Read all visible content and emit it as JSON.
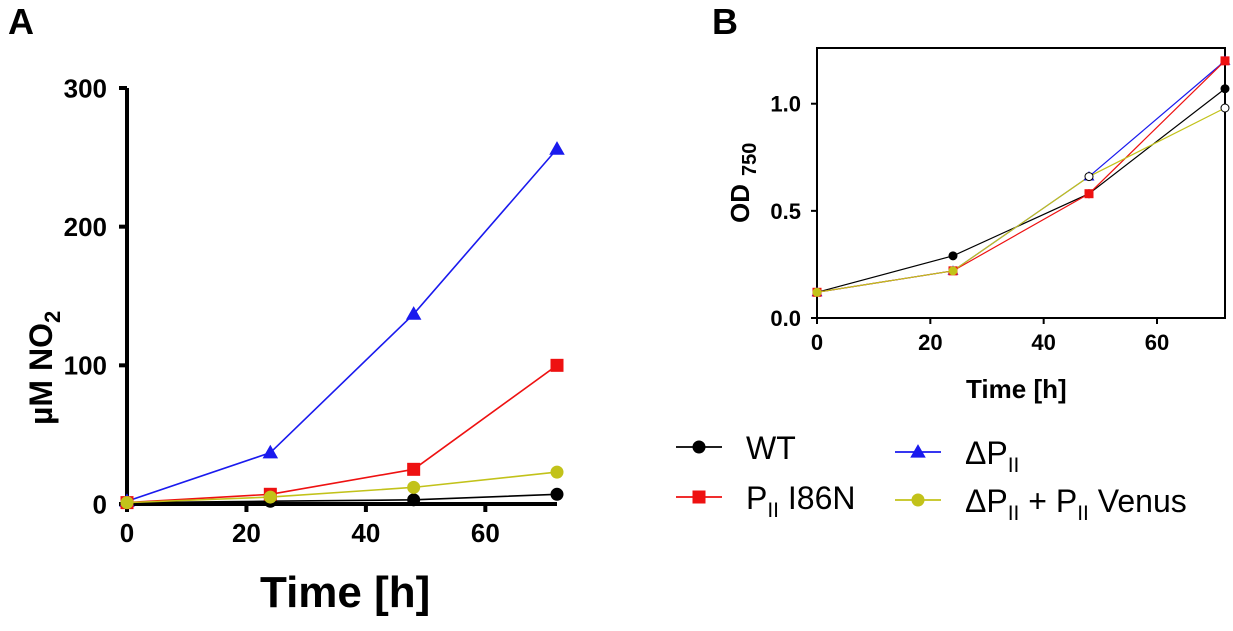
{
  "colors": {
    "WT": "#000000",
    "PII_I86N": "#ee1111",
    "dPII": "#1a1aee",
    "dPII_venus": "#c2c21a"
  },
  "chart_data": [
    {
      "panel": "A",
      "type": "line",
      "title": "",
      "xlabel": "Time [h]",
      "ylabel_main": "µM NO",
      "ylabel_sub": "2",
      "xlim": [
        0,
        72
      ],
      "ylim": [
        0,
        300
      ],
      "xticks": [
        "0",
        "20",
        "40",
        "60"
      ],
      "yticks": [
        "0",
        "100",
        "200",
        "300"
      ],
      "x": [
        0,
        24,
        48,
        72
      ],
      "series": [
        {
          "key": "WT",
          "name": "WT",
          "marker": "circle",
          "values": [
            1,
            2,
            3,
            7
          ]
        },
        {
          "key": "dPII",
          "name": "ΔPII",
          "marker": "triangle",
          "values": [
            2,
            37,
            137,
            256
          ]
        },
        {
          "key": "PII_I86N",
          "name": "PII I86N",
          "marker": "square",
          "values": [
            1,
            7,
            25,
            100
          ]
        },
        {
          "key": "dPII_venus",
          "name": "ΔPII + PII Venus",
          "marker": "circle",
          "values": [
            1,
            5,
            12,
            23
          ]
        }
      ]
    },
    {
      "panel": "B",
      "type": "line",
      "title": "",
      "xlabel": "Time [h]",
      "ylabel_main": "OD",
      "ylabel_sub": "750",
      "xlim": [
        0,
        72
      ],
      "ylim": [
        0,
        1.26
      ],
      "xticks": [
        "0",
        "20",
        "40",
        "60"
      ],
      "yticks": [
        "0.0",
        "0.5",
        "1.0"
      ],
      "x": [
        0,
        24,
        48,
        72
      ],
      "series": [
        {
          "key": "WT",
          "name": "WT",
          "marker": "circle",
          "values": [
            0.12,
            0.29,
            0.58,
            1.07
          ]
        },
        {
          "key": "dPII",
          "name": "ΔPII",
          "marker": "triangle",
          "values": [
            0.12,
            0.22,
            0.66,
            1.2
          ]
        },
        {
          "key": "PII_I86N",
          "name": "PII I86N",
          "marker": "square",
          "values": [
            0.12,
            0.22,
            0.58,
            1.2
          ]
        },
        {
          "key": "dPII_venus",
          "name": "ΔPII + PII Venus",
          "marker": "circle",
          "values": [
            0.12,
            0.22,
            0.66,
            0.98
          ]
        }
      ]
    }
  ],
  "legend": [
    {
      "key": "WT",
      "marker": "circle",
      "main": "WT",
      "sub": "",
      "tail": ""
    },
    {
      "key": "dPII",
      "marker": "triangle",
      "main": "ΔP",
      "sub": "II",
      "tail": ""
    },
    {
      "key": "PII_I86N",
      "marker": "square",
      "main": "P",
      "sub": "II",
      "tail": " I86N"
    },
    {
      "key": "dPII_venus",
      "marker": "circle",
      "main": "ΔP",
      "sub": "II",
      "tail": " + P",
      "sub2": "II",
      "tail2": " Venus"
    }
  ]
}
